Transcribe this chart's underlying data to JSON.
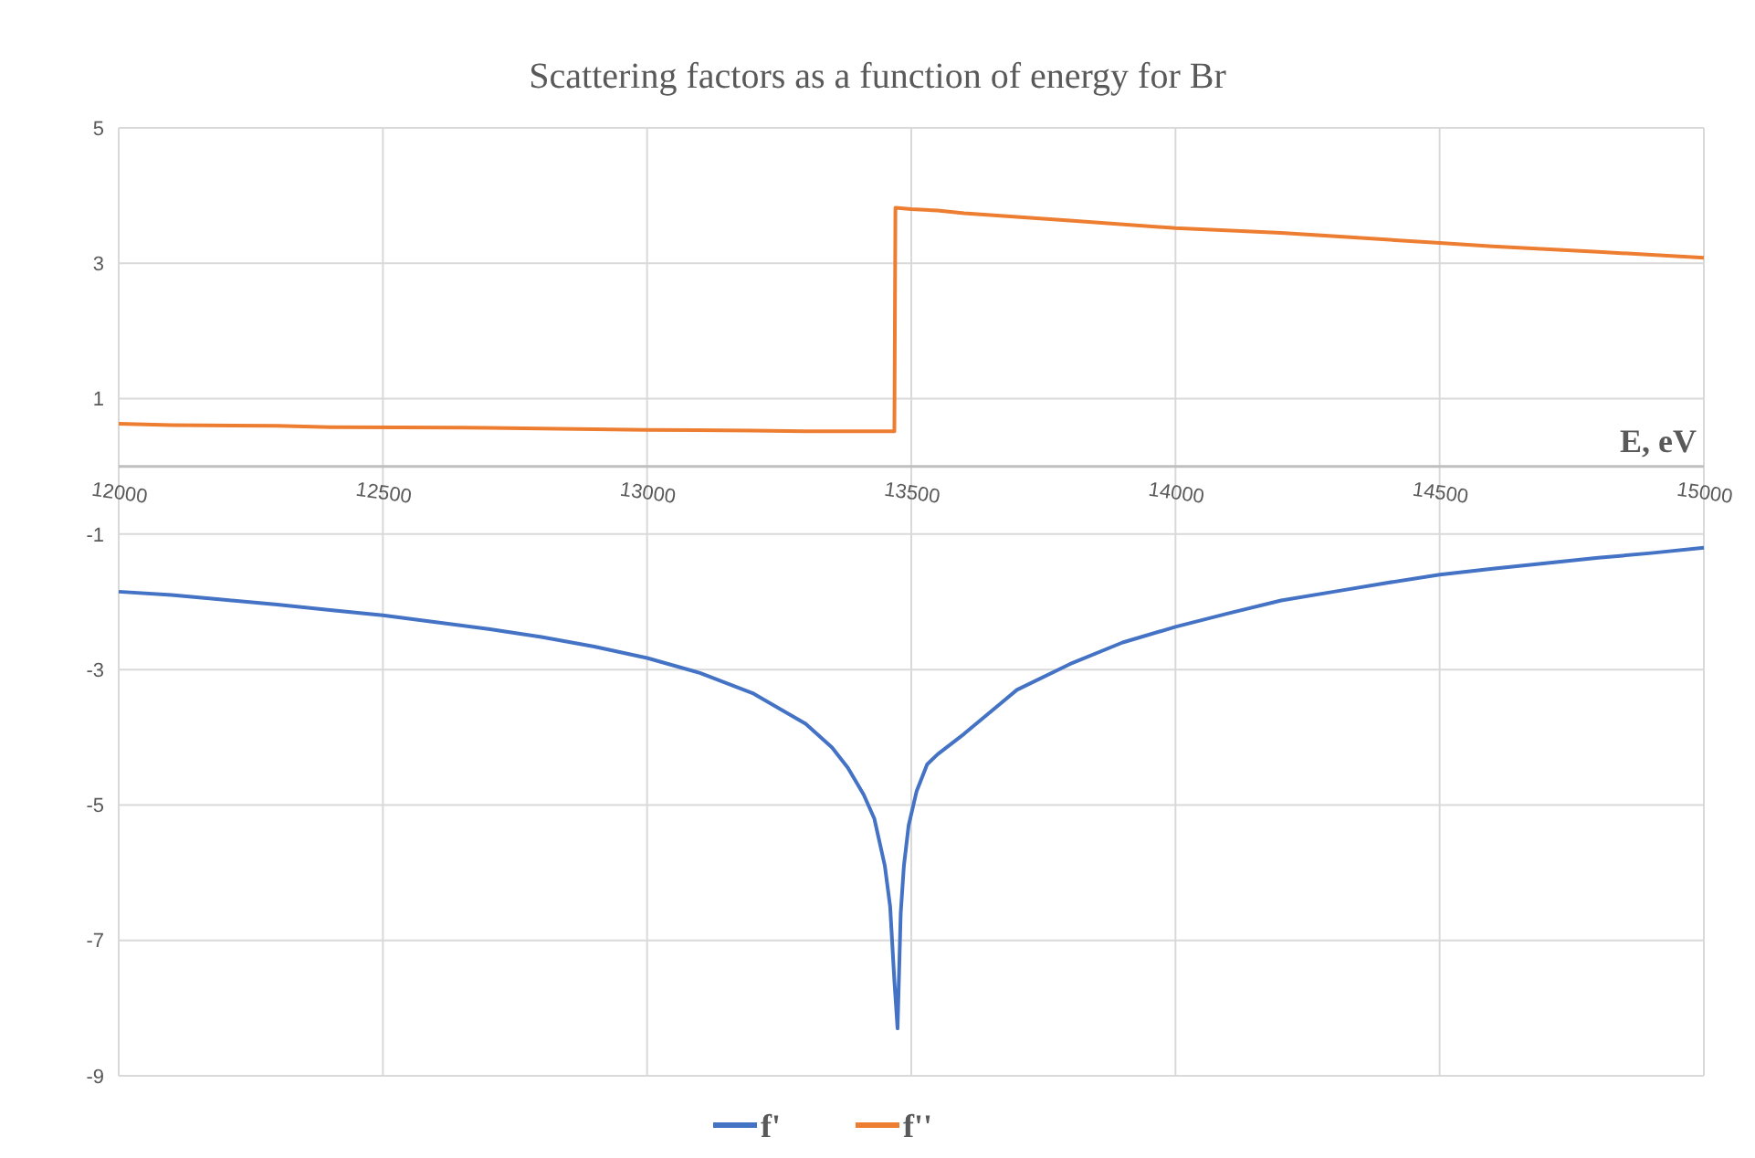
{
  "chart_data": {
    "type": "line",
    "title": "Scattering factors as a function of energy for Br",
    "xlabel": "E, eV",
    "xlim": [
      12000,
      15000
    ],
    "xticks": [
      12000,
      12500,
      13000,
      13500,
      14000,
      14500,
      15000
    ],
    "ylim": [
      -9,
      5
    ],
    "yticks": [
      -9,
      -7,
      -5,
      -3,
      -1,
      1,
      3,
      5
    ],
    "grid": true,
    "legend": "bottom",
    "marker": "none",
    "line_style": "solid",
    "series": [
      {
        "name": "f'",
        "color": "#4472c4",
        "x": [
          12000,
          12100,
          12200,
          12300,
          12400,
          12500,
          12600,
          12700,
          12800,
          12900,
          13000,
          13100,
          13200,
          13300,
          13350,
          13380,
          13410,
          13430,
          13450,
          13460,
          13468,
          13474,
          13480,
          13486,
          13495,
          13510,
          13530,
          13550,
          13600,
          13700,
          13800,
          13900,
          14000,
          14100,
          14200,
          14300,
          14400,
          14500,
          14600,
          14700,
          14800,
          14900,
          15000
        ],
        "values": [
          -1.85,
          -1.9,
          -1.97,
          -2.04,
          -2.12,
          -2.2,
          -2.3,
          -2.4,
          -2.52,
          -2.66,
          -2.83,
          -3.05,
          -3.35,
          -3.8,
          -4.15,
          -4.45,
          -4.85,
          -5.2,
          -5.9,
          -6.5,
          -7.6,
          -8.3,
          -6.6,
          -5.9,
          -5.3,
          -4.8,
          -4.4,
          -4.25,
          -3.95,
          -3.3,
          -2.92,
          -2.6,
          -2.37,
          -2.17,
          -1.98,
          -1.85,
          -1.72,
          -1.6,
          -1.51,
          -1.43,
          -1.35,
          -1.28,
          -1.2
        ]
      },
      {
        "name": "f''",
        "color": "#ed7d31",
        "x": [
          12000,
          12100,
          12300,
          12400,
          12700,
          12900,
          13000,
          13200,
          13300,
          13468,
          13470,
          13500,
          13550,
          13600,
          13800,
          14000,
          14200,
          14500,
          14600,
          14800,
          15000
        ],
        "values": [
          0.63,
          0.61,
          0.6,
          0.58,
          0.57,
          0.55,
          0.54,
          0.53,
          0.52,
          0.52,
          3.82,
          3.8,
          3.78,
          3.74,
          3.63,
          3.52,
          3.45,
          3.3,
          3.25,
          3.17,
          3.08
        ]
      }
    ]
  }
}
